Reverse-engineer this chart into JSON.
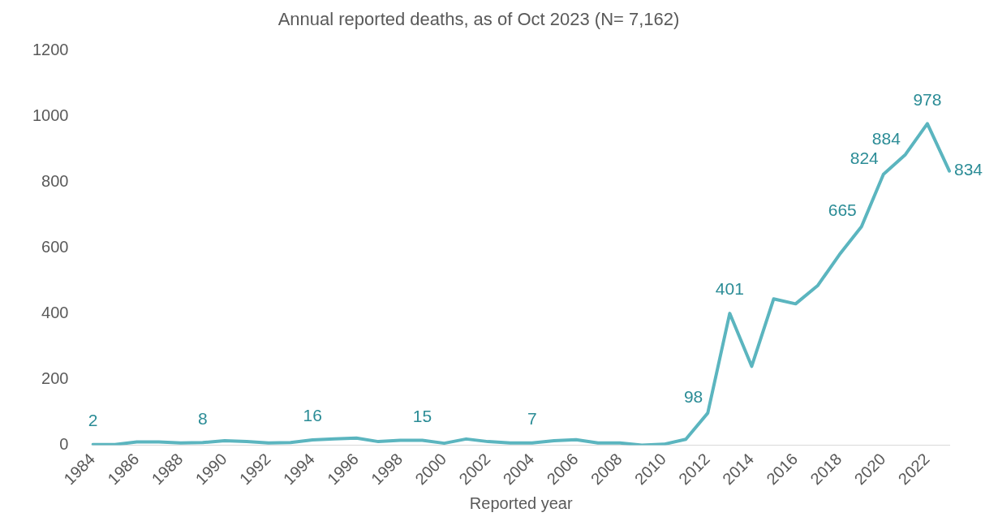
{
  "chart_data": {
    "type": "line",
    "title": "Annual reported deaths, as of Oct 2023 (N= 7,162)",
    "xlabel": "Reported year",
    "categories": [
      "1984",
      null,
      "1986",
      null,
      "1988",
      null,
      "1990",
      null,
      "1992",
      null,
      "1994",
      null,
      "1996",
      null,
      "1998",
      null,
      "2000",
      null,
      "2002",
      null,
      "2004",
      null,
      "2006",
      null,
      "2008",
      null,
      "2010",
      null,
      "2012",
      null,
      "2014",
      null,
      "2016",
      null,
      "2018",
      null,
      "2020",
      null,
      "2022",
      null
    ],
    "series": [
      {
        "color": "#5bb5bf",
        "values": [
          2,
          2,
          10,
          10,
          7,
          8,
          14,
          11,
          7,
          8,
          16,
          19,
          22,
          11,
          15,
          15,
          6,
          19,
          11,
          7,
          7,
          14,
          17,
          7,
          7,
          0,
          3,
          18,
          98,
          401,
          240,
          445,
          430,
          485,
          580,
          665,
          824,
          884,
          978,
          834
        ],
        "value_labels": [
          "2",
          null,
          null,
          null,
          null,
          "8",
          null,
          null,
          null,
          null,
          "16",
          null,
          null,
          null,
          null,
          "15",
          null,
          null,
          null,
          null,
          "7",
          null,
          null,
          null,
          null,
          null,
          null,
          null,
          "98",
          "401",
          null,
          null,
          null,
          null,
          null,
          "665",
          "824",
          "884",
          "978",
          "834"
        ]
      }
    ],
    "ylim": [
      0,
      1200
    ],
    "yticks": [
      0,
      200,
      400,
      600,
      800,
      1000,
      1200
    ],
    "grid": false,
    "legend": false,
    "marker": "none",
    "line_style": "solid"
  }
}
